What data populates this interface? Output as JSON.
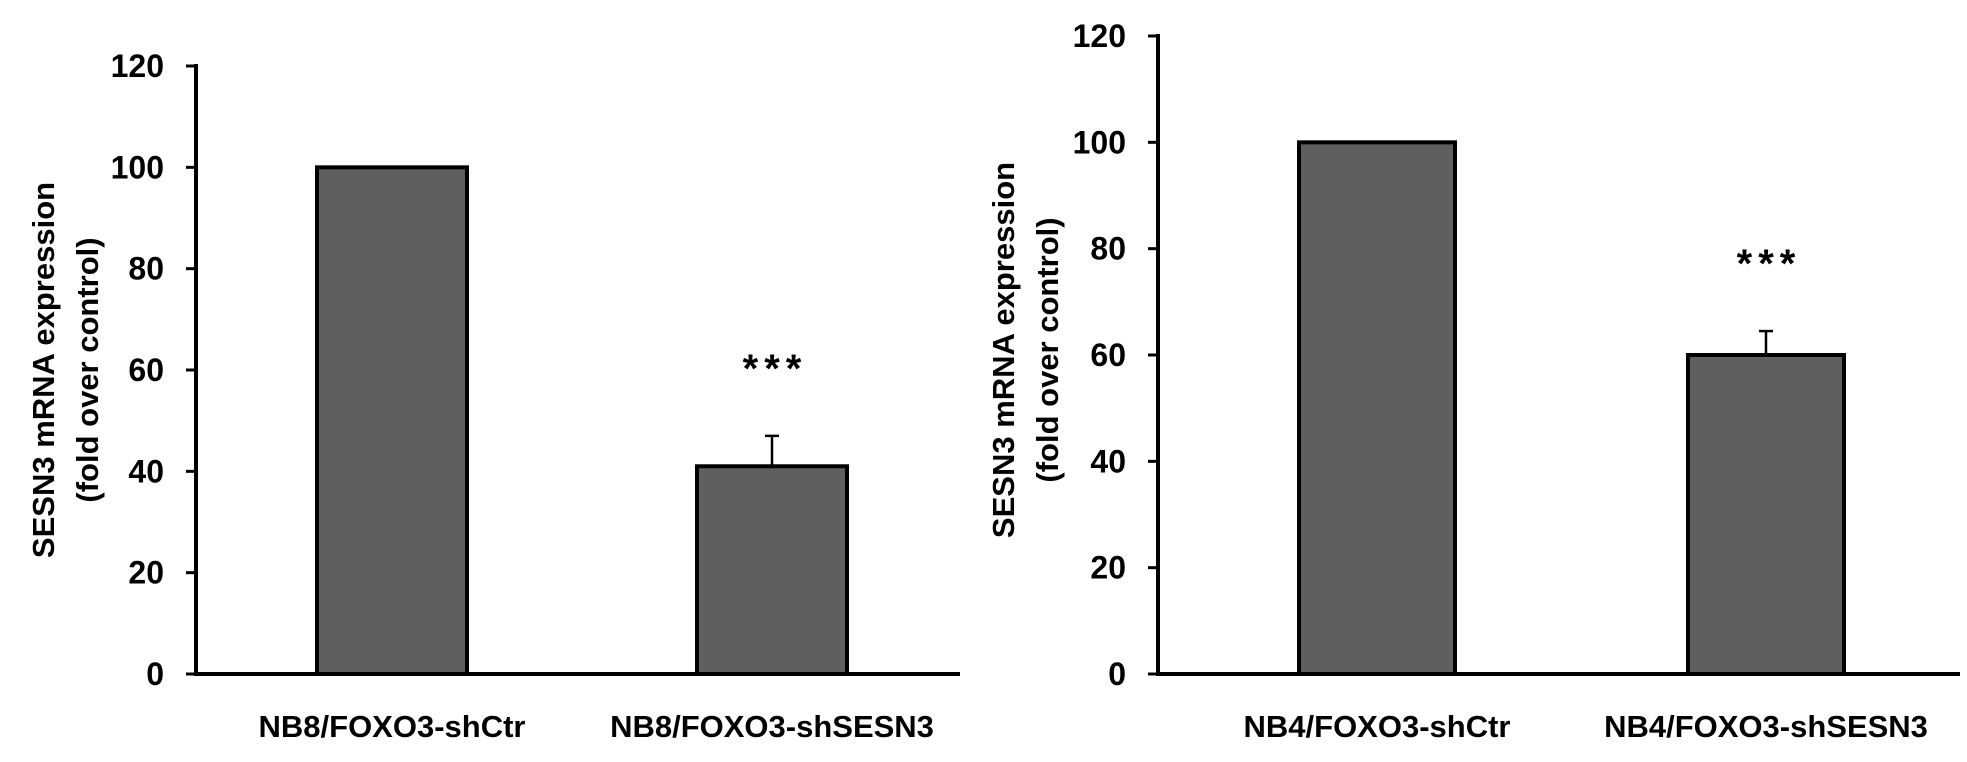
{
  "chart_data": [
    {
      "type": "bar",
      "categories": [
        "NB8/FOXO3-shCtr",
        "NB8/FOXO3-shSESN3"
      ],
      "values": [
        100,
        41
      ],
      "error": [
        0,
        6
      ],
      "annotations": [
        "",
        "***"
      ],
      "title": "",
      "xlabel": "",
      "ylabel": [
        "SESN3 mRNA expression",
        "(fold over control)"
      ],
      "ylim": [
        0,
        120
      ],
      "yticks": [
        "0",
        "20",
        "40",
        "60",
        "80",
        "100",
        "120"
      ],
      "grid": false,
      "bar_color": "#5f5f5f"
    },
    {
      "type": "bar",
      "categories": [
        "NB4/FOXO3-shCtr",
        "NB4/FOXO3-shSESN3"
      ],
      "values": [
        100,
        60
      ],
      "error": [
        0,
        4.5
      ],
      "annotations": [
        "",
        "***"
      ],
      "title": "",
      "xlabel": "",
      "ylabel": [
        "SESN3 mRNA expression",
        "(fold over control)"
      ],
      "ylim": [
        0,
        120
      ],
      "yticks": [
        "0",
        "20",
        "40",
        "60",
        "80",
        "100",
        "120"
      ],
      "grid": false,
      "bar_color": "#5f5f5f"
    }
  ]
}
